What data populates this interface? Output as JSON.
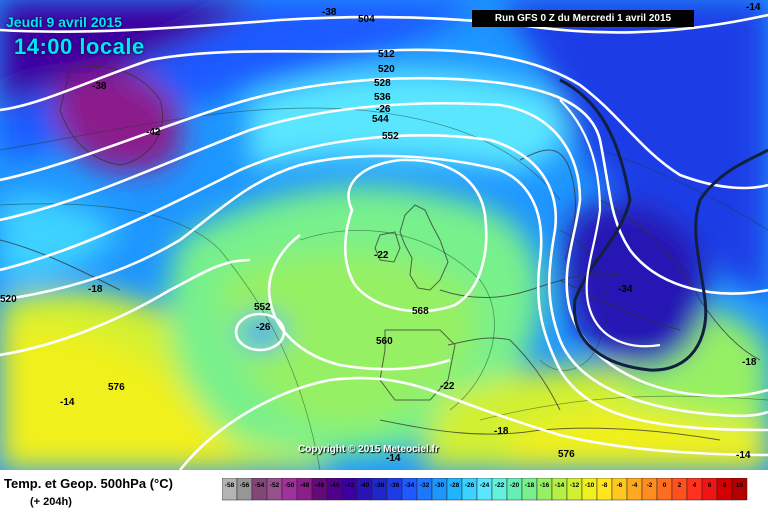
{
  "map": {
    "date": "Jeudi 9 avril 2015",
    "local_time": "14:00 locale",
    "run_info": "Run GFS 0 Z du Mercredi 1 avril 2015",
    "copyright": "Copyright © 2015 Meteociel.fr",
    "field_title": "Temp. et Geop. 500hPa (°C)",
    "lead_time": "(+ 204h)",
    "geopotential_labels": [
      "504",
      "512",
      "520",
      "528",
      "536",
      "544",
      "552",
      "552",
      "560",
      "568",
      "576",
      "576",
      "520"
    ],
    "temperature_labels": [
      "-38",
      "-38",
      "-42",
      "-26",
      "-22",
      "-26",
      "-34",
      "-18",
      "-18",
      "-22",
      "-14",
      "-14",
      "-18",
      "-14",
      "-14"
    ],
    "legend_scale": [
      "-58",
      "-56",
      "-54",
      "-52",
      "-50",
      "-48",
      "-46",
      "-44",
      "-42",
      "-40",
      "-38",
      "-36",
      "-34",
      "-32",
      "-30",
      "-28",
      "-26",
      "-24",
      "-22",
      "-20",
      "-18",
      "-16",
      "-14",
      "-12",
      "-10",
      "-8",
      "-6",
      "-4",
      "-2",
      "0",
      "2",
      "4",
      "6",
      "8",
      "10"
    ],
    "legend_colors": [
      "#b4b4b4",
      "#969696",
      "#824678",
      "#96508c",
      "#a0329b",
      "#8c1e8c",
      "#640a78",
      "#50008c",
      "#3c00a0",
      "#2814b4",
      "#1e28c8",
      "#1e3ce6",
      "#1e5aff",
      "#1e78ff",
      "#1e96ff",
      "#1eb4ff",
      "#3cd2ff",
      "#5ae6ff",
      "#64f0dc",
      "#64f0b4",
      "#78f08c",
      "#96f064",
      "#b4f046",
      "#d2f032",
      "#f0f01e",
      "#ffe61e",
      "#ffc81e",
      "#ffaa1e",
      "#ff8c1e",
      "#ff6e1e",
      "#ff501e",
      "#ff321e",
      "#f01414",
      "#d20000",
      "#b40000"
    ]
  }
}
